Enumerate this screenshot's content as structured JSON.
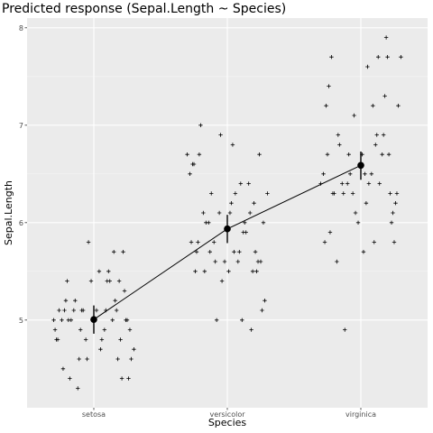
{
  "colors": {
    "panel": "#ebebeb",
    "grid_major": "#ffffff",
    "grid_minor": "#f5f5f5",
    "points": "#000000",
    "line": "#000000"
  },
  "chart_data": {
    "type": "scatter",
    "title": "Predicted response (Sepal.Length ~ Species)",
    "xlabel": "Species",
    "ylabel": "Sepal.Length",
    "categories": [
      "setosa",
      "versicolor",
      "virginica"
    ],
    "ylim": [
      4.1,
      8.1
    ],
    "yticks": [
      "5",
      "6",
      "7",
      "8"
    ],
    "grid": true,
    "predictions": [
      {
        "category": "setosa",
        "fit": 5.006,
        "lower": 4.86,
        "upper": 5.15
      },
      {
        "category": "versicolor",
        "fit": 5.936,
        "lower": 5.79,
        "upper": 6.08
      },
      {
        "category": "virginica",
        "fit": 6.588,
        "lower": 6.44,
        "upper": 6.73
      }
    ],
    "observations": [
      {
        "category": "setosa",
        "jitter": -0.22,
        "y": 5.1
      },
      {
        "category": "setosa",
        "jitter": -0.1,
        "y": 4.9
      },
      {
        "category": "setosa",
        "jitter": 0.05,
        "y": 4.7
      },
      {
        "category": "setosa",
        "jitter": 0.18,
        "y": 4.6
      },
      {
        "category": "setosa",
        "jitter": -0.3,
        "y": 5.0
      },
      {
        "category": "setosa",
        "jitter": 0.12,
        "y": 5.4
      },
      {
        "category": "setosa",
        "jitter": -0.05,
        "y": 4.6
      },
      {
        "category": "setosa",
        "jitter": 0.25,
        "y": 5.0
      },
      {
        "category": "setosa",
        "jitter": -0.18,
        "y": 4.4
      },
      {
        "category": "setosa",
        "jitter": 0.08,
        "y": 4.9
      },
      {
        "category": "setosa",
        "jitter": -0.02,
        "y": 5.4
      },
      {
        "category": "setosa",
        "jitter": -0.28,
        "y": 4.8
      },
      {
        "category": "setosa",
        "jitter": 0.2,
        "y": 4.8
      },
      {
        "category": "setosa",
        "jitter": -0.12,
        "y": 4.3
      },
      {
        "category": "setosa",
        "jitter": -0.04,
        "y": 5.8
      },
      {
        "category": "setosa",
        "jitter": 0.15,
        "y": 5.7
      },
      {
        "category": "setosa",
        "jitter": -0.2,
        "y": 5.4
      },
      {
        "category": "setosa",
        "jitter": 0.02,
        "y": 5.1
      },
      {
        "category": "setosa",
        "jitter": 0.22,
        "y": 5.7
      },
      {
        "category": "setosa",
        "jitter": -0.26,
        "y": 5.1
      },
      {
        "category": "setosa",
        "jitter": 0.1,
        "y": 5.4
      },
      {
        "category": "setosa",
        "jitter": -0.15,
        "y": 5.1
      },
      {
        "category": "setosa",
        "jitter": 0.28,
        "y": 4.6
      },
      {
        "category": "setosa",
        "jitter": -0.08,
        "y": 5.1
      },
      {
        "category": "setosa",
        "jitter": 0.06,
        "y": 4.8
      },
      {
        "category": "setosa",
        "jitter": 0.24,
        "y": 5.0
      },
      {
        "category": "setosa",
        "jitter": -0.24,
        "y": 5.0
      },
      {
        "category": "setosa",
        "jitter": 0.16,
        "y": 5.2
      },
      {
        "category": "setosa",
        "jitter": -0.14,
        "y": 5.2
      },
      {
        "category": "setosa",
        "jitter": 0.3,
        "y": 4.7
      },
      {
        "category": "setosa",
        "jitter": -0.06,
        "y": 4.8
      },
      {
        "category": "setosa",
        "jitter": 0.19,
        "y": 5.4
      },
      {
        "category": "setosa",
        "jitter": -0.21,
        "y": 5.2
      },
      {
        "category": "setosa",
        "jitter": 0.04,
        "y": 5.5
      },
      {
        "category": "setosa",
        "jitter": 0.27,
        "y": 4.9
      },
      {
        "category": "setosa",
        "jitter": -0.17,
        "y": 5.0
      },
      {
        "category": "setosa",
        "jitter": 0.11,
        "y": 5.5
      },
      {
        "category": "setosa",
        "jitter": -0.29,
        "y": 4.9
      },
      {
        "category": "setosa",
        "jitter": 0.21,
        "y": 4.4
      },
      {
        "category": "setosa",
        "jitter": -0.09,
        "y": 5.1
      },
      {
        "category": "setosa",
        "jitter": 0.14,
        "y": 5.0
      },
      {
        "category": "setosa",
        "jitter": -0.23,
        "y": 4.5
      },
      {
        "category": "setosa",
        "jitter": 0.26,
        "y": 4.4
      },
      {
        "category": "setosa",
        "jitter": -0.01,
        "y": 5.0
      },
      {
        "category": "setosa",
        "jitter": 0.09,
        "y": 5.1
      },
      {
        "category": "setosa",
        "jitter": -0.27,
        "y": 4.8
      },
      {
        "category": "setosa",
        "jitter": 0.17,
        "y": 5.1
      },
      {
        "category": "setosa",
        "jitter": -0.11,
        "y": 4.6
      },
      {
        "category": "setosa",
        "jitter": 0.23,
        "y": 5.3
      },
      {
        "category": "setosa",
        "jitter": -0.19,
        "y": 5.0
      },
      {
        "category": "versicolor",
        "jitter": -0.2,
        "y": 7.0
      },
      {
        "category": "versicolor",
        "jitter": 0.1,
        "y": 6.4
      },
      {
        "category": "versicolor",
        "jitter": -0.05,
        "y": 6.9
      },
      {
        "category": "versicolor",
        "jitter": 0.22,
        "y": 5.5
      },
      {
        "category": "versicolor",
        "jitter": -0.28,
        "y": 6.5
      },
      {
        "category": "versicolor",
        "jitter": 0.05,
        "y": 5.7
      },
      {
        "category": "versicolor",
        "jitter": -0.12,
        "y": 6.3
      },
      {
        "category": "versicolor",
        "jitter": 0.18,
        "y": 4.9
      },
      {
        "category": "versicolor",
        "jitter": -0.25,
        "y": 6.6
      },
      {
        "category": "versicolor",
        "jitter": 0.28,
        "y": 5.2
      },
      {
        "category": "versicolor",
        "jitter": -0.08,
        "y": 5.0
      },
      {
        "category": "versicolor",
        "jitter": 0.14,
        "y": 5.9
      },
      {
        "category": "versicolor",
        "jitter": -0.16,
        "y": 6.0
      },
      {
        "category": "versicolor",
        "jitter": 0.02,
        "y": 6.1
      },
      {
        "category": "versicolor",
        "jitter": 0.25,
        "y": 5.6
      },
      {
        "category": "versicolor",
        "jitter": -0.3,
        "y": 6.7
      },
      {
        "category": "versicolor",
        "jitter": 0.08,
        "y": 5.6
      },
      {
        "category": "versicolor",
        "jitter": -0.22,
        "y": 5.8
      },
      {
        "category": "versicolor",
        "jitter": 0.2,
        "y": 6.2
      },
      {
        "category": "versicolor",
        "jitter": -0.02,
        "y": 5.6
      },
      {
        "category": "versicolor",
        "jitter": 0.12,
        "y": 5.9
      },
      {
        "category": "versicolor",
        "jitter": -0.18,
        "y": 6.1
      },
      {
        "category": "versicolor",
        "jitter": 0.3,
        "y": 6.3
      },
      {
        "category": "versicolor",
        "jitter": -0.06,
        "y": 6.1
      },
      {
        "category": "versicolor",
        "jitter": 0.16,
        "y": 6.4
      },
      {
        "category": "versicolor",
        "jitter": -0.26,
        "y": 6.6
      },
      {
        "category": "versicolor",
        "jitter": 0.04,
        "y": 6.8
      },
      {
        "category": "versicolor",
        "jitter": 0.24,
        "y": 6.7
      },
      {
        "category": "versicolor",
        "jitter": -0.14,
        "y": 6.0
      },
      {
        "category": "versicolor",
        "jitter": 0.09,
        "y": 5.7
      },
      {
        "category": "versicolor",
        "jitter": -0.24,
        "y": 5.5
      },
      {
        "category": "versicolor",
        "jitter": 0.19,
        "y": 5.5
      },
      {
        "category": "versicolor",
        "jitter": -0.1,
        "y": 5.8
      },
      {
        "category": "versicolor",
        "jitter": 0.27,
        "y": 6.0
      },
      {
        "category": "versicolor",
        "jitter": -0.04,
        "y": 5.4
      },
      {
        "category": "versicolor",
        "jitter": 0.13,
        "y": 6.0
      },
      {
        "category": "versicolor",
        "jitter": -0.21,
        "y": 6.7
      },
      {
        "category": "versicolor",
        "jitter": 0.06,
        "y": 6.3
      },
      {
        "category": "versicolor",
        "jitter": 0.23,
        "y": 5.6
      },
      {
        "category": "versicolor",
        "jitter": -0.17,
        "y": 5.5
      },
      {
        "category": "versicolor",
        "jitter": 0.01,
        "y": 5.5
      },
      {
        "category": "versicolor",
        "jitter": 0.17,
        "y": 6.1
      },
      {
        "category": "versicolor",
        "jitter": -0.27,
        "y": 5.8
      },
      {
        "category": "versicolor",
        "jitter": 0.11,
        "y": 5.0
      },
      {
        "category": "versicolor",
        "jitter": -0.09,
        "y": 5.6
      },
      {
        "category": "versicolor",
        "jitter": 0.21,
        "y": 5.7
      },
      {
        "category": "versicolor",
        "jitter": -0.13,
        "y": 5.7
      },
      {
        "category": "versicolor",
        "jitter": 0.03,
        "y": 6.2
      },
      {
        "category": "versicolor",
        "jitter": 0.26,
        "y": 5.1
      },
      {
        "category": "versicolor",
        "jitter": -0.23,
        "y": 5.7
      },
      {
        "category": "virginica",
        "jitter": -0.2,
        "y": 6.3
      },
      {
        "category": "virginica",
        "jitter": 0.1,
        "y": 5.8
      },
      {
        "category": "virginica",
        "jitter": -0.05,
        "y": 7.1
      },
      {
        "category": "virginica",
        "jitter": 0.22,
        "y": 6.3
      },
      {
        "category": "virginica",
        "jitter": -0.28,
        "y": 6.5
      },
      {
        "category": "virginica",
        "jitter": 0.05,
        "y": 7.6
      },
      {
        "category": "virginica",
        "jitter": -0.12,
        "y": 4.9
      },
      {
        "category": "virginica",
        "jitter": 0.18,
        "y": 7.3
      },
      {
        "category": "virginica",
        "jitter": -0.25,
        "y": 6.7
      },
      {
        "category": "virginica",
        "jitter": 0.28,
        "y": 7.2
      },
      {
        "category": "virginica",
        "jitter": -0.08,
        "y": 6.5
      },
      {
        "category": "virginica",
        "jitter": 0.14,
        "y": 6.4
      },
      {
        "category": "virginica",
        "jitter": -0.16,
        "y": 6.8
      },
      {
        "category": "virginica",
        "jitter": 0.02,
        "y": 5.7
      },
      {
        "category": "virginica",
        "jitter": 0.25,
        "y": 5.8
      },
      {
        "category": "virginica",
        "jitter": -0.3,
        "y": 6.4
      },
      {
        "category": "virginica",
        "jitter": 0.08,
        "y": 6.5
      },
      {
        "category": "virginica",
        "jitter": -0.22,
        "y": 7.7
      },
      {
        "category": "virginica",
        "jitter": 0.2,
        "y": 7.7
      },
      {
        "category": "virginica",
        "jitter": -0.02,
        "y": 6.0
      },
      {
        "category": "virginica",
        "jitter": 0.12,
        "y": 6.9
      },
      {
        "category": "virginica",
        "jitter": -0.18,
        "y": 5.6
      },
      {
        "category": "virginica",
        "jitter": 0.3,
        "y": 7.7
      },
      {
        "category": "virginica",
        "jitter": -0.06,
        "y": 6.3
      },
      {
        "category": "virginica",
        "jitter": 0.16,
        "y": 6.7
      },
      {
        "category": "virginica",
        "jitter": -0.26,
        "y": 7.2
      },
      {
        "category": "virginica",
        "jitter": 0.04,
        "y": 6.2
      },
      {
        "category": "virginica",
        "jitter": 0.24,
        "y": 6.1
      },
      {
        "category": "virginica",
        "jitter": -0.14,
        "y": 6.4
      },
      {
        "category": "virginica",
        "jitter": 0.09,
        "y": 7.2
      },
      {
        "category": "virginica",
        "jitter": -0.24,
        "y": 7.4
      },
      {
        "category": "virginica",
        "jitter": 0.19,
        "y": 7.9
      },
      {
        "category": "virginica",
        "jitter": -0.1,
        "y": 6.4
      },
      {
        "category": "virginica",
        "jitter": 0.27,
        "y": 6.3
      },
      {
        "category": "virginica",
        "jitter": -0.04,
        "y": 6.1
      },
      {
        "category": "virginica",
        "jitter": 0.13,
        "y": 7.7
      },
      {
        "category": "virginica",
        "jitter": -0.21,
        "y": 6.3
      },
      {
        "category": "virginica",
        "jitter": 0.06,
        "y": 6.4
      },
      {
        "category": "virginica",
        "jitter": 0.23,
        "y": 6.0
      },
      {
        "category": "virginica",
        "jitter": -0.17,
        "y": 6.9
      },
      {
        "category": "virginica",
        "jitter": 0.01,
        "y": 6.7
      },
      {
        "category": "virginica",
        "jitter": 0.17,
        "y": 6.9
      },
      {
        "category": "virginica",
        "jitter": -0.27,
        "y": 5.8
      },
      {
        "category": "virginica",
        "jitter": 0.11,
        "y": 6.8
      },
      {
        "category": "virginica",
        "jitter": -0.09,
        "y": 6.7
      },
      {
        "category": "virginica",
        "jitter": 0.21,
        "y": 6.7
      },
      {
        "category": "virginica",
        "jitter": -0.13,
        "y": 6.3
      },
      {
        "category": "virginica",
        "jitter": 0.03,
        "y": 6.5
      },
      {
        "category": "virginica",
        "jitter": 0.26,
        "y": 6.2
      },
      {
        "category": "virginica",
        "jitter": -0.23,
        "y": 5.9
      }
    ]
  }
}
